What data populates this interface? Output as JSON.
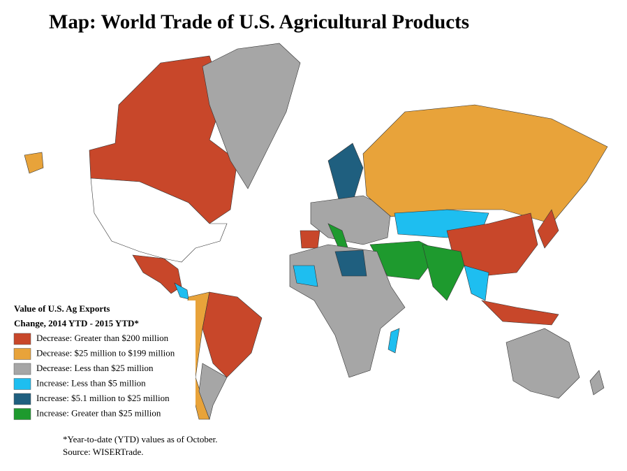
{
  "title": "Map: World Trade of U.S. Agricultural Products",
  "legend": {
    "title": [
      "Value of U.S. Ag Exports",
      "Change, 2014 YTD - 2015 YTD*"
    ],
    "items": [
      {
        "label": "Decrease: Greater than $200 million",
        "color": "#c8472a"
      },
      {
        "label": "Decrease: $25 million to $199 million",
        "color": "#e8a33a"
      },
      {
        "label": "Decrease: Less than $25 million",
        "color": "#a6a6a6"
      },
      {
        "label": "Increase: Less than $5 million",
        "color": "#1ebef0"
      },
      {
        "label": "Increase: $5.1 million to $25 million",
        "color": "#1f5f7f"
      },
      {
        "label": "Increase: Greater than $25 million",
        "color": "#1e9a2e"
      }
    ]
  },
  "notes": [
    "*Year-to-date (YTD) values as of October.",
    "Source: WISERTrade."
  ]
}
